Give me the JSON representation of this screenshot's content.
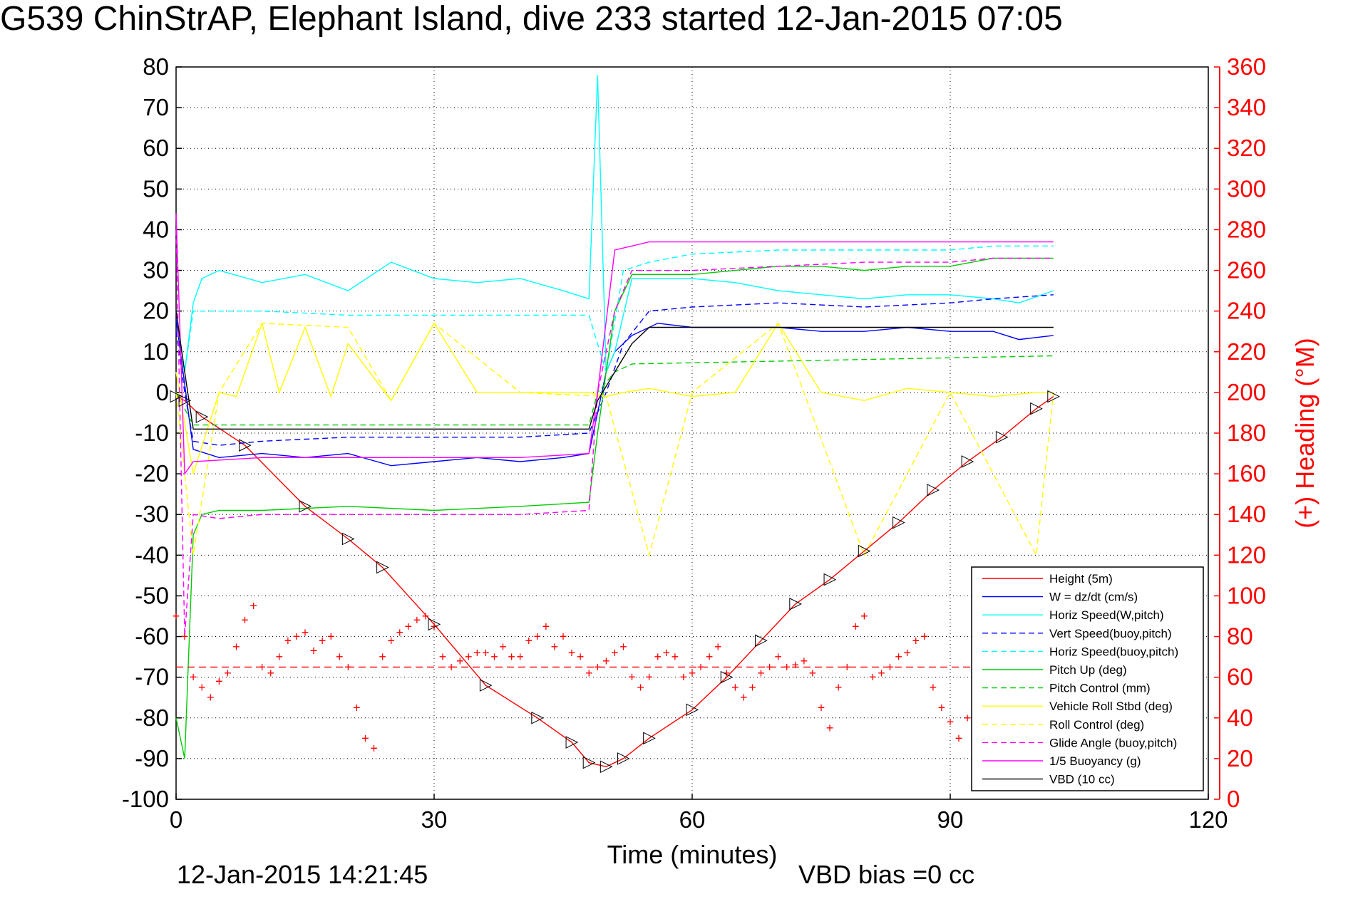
{
  "chart_data": {
    "type": "line",
    "title": "G539 ChinStrAP, Elephant Island, dive 233 started 12-Jan-2015 07:05",
    "xlabel": "Time (minutes)",
    "ylabel_right": "(+) Heading (°M)",
    "footer_left": "12-Jan-2015 14:21:45",
    "footer_right": "VBD bias =0 cc",
    "xlim": [
      0,
      120
    ],
    "ylim": [
      -100,
      80
    ],
    "ylim_right": [
      0,
      360
    ],
    "xticks": [
      0,
      30,
      60,
      90,
      120
    ],
    "yticks": [
      80,
      70,
      60,
      50,
      40,
      30,
      20,
      10,
      0,
      -10,
      -20,
      -30,
      -40,
      -50,
      -60,
      -70,
      -80,
      -90,
      -100
    ],
    "yticks_right": [
      360,
      340,
      320,
      300,
      280,
      260,
      240,
      220,
      200,
      180,
      160,
      140,
      120,
      100,
      80,
      60,
      40,
      20,
      0
    ],
    "grid": true,
    "legend_position": "lower-right",
    "legend_colors": {
      "red": "#ff0000",
      "blue": "#0000ff",
      "cyan": "#00ffff",
      "green": "#00cc00",
      "yellow": "#ffff00",
      "magenta": "#ff00ff",
      "black": "#000000"
    },
    "series": [
      {
        "name": "Height (5m)",
        "color": "#ff0000",
        "dash": false,
        "x": [
          0,
          1,
          3,
          8,
          15,
          20,
          24,
          30,
          36,
          42,
          46,
          48,
          50,
          52,
          55,
          60,
          64,
          68,
          72,
          76,
          80,
          84,
          88,
          92,
          96,
          100,
          102
        ],
        "y": [
          -1,
          -2,
          -6,
          -13,
          -28,
          -36,
          -43,
          -57,
          -72,
          -80,
          -86,
          -91,
          -92,
          -90,
          -85,
          -78,
          -70,
          -61,
          -52,
          -46,
          -39,
          -32,
          -24,
          -17,
          -11,
          -4,
          -1
        ]
      },
      {
        "name": "W = dz/dt (cm/s)",
        "color": "#0000ff",
        "dash": false,
        "x": [
          0,
          1,
          2,
          5,
          10,
          15,
          20,
          25,
          30,
          35,
          40,
          45,
          48,
          49,
          50,
          51,
          53,
          56,
          60,
          65,
          70,
          75,
          80,
          85,
          90,
          95,
          98,
          102
        ],
        "y": [
          18,
          2,
          -14,
          -16,
          -15,
          -16,
          -15,
          -18,
          -17,
          -16,
          -17,
          -16,
          -15,
          -5,
          5,
          10,
          14,
          17,
          16,
          16,
          16,
          15,
          15,
          16,
          15,
          15,
          13,
          14
        ]
      },
      {
        "name": "Horiz Speed(W,pitch)",
        "color": "#00ffff",
        "dash": false,
        "x": [
          0,
          1,
          2,
          3,
          5,
          10,
          15,
          20,
          25,
          30,
          35,
          40,
          45,
          48,
          49,
          50,
          51,
          53,
          56,
          60,
          65,
          70,
          75,
          80,
          85,
          90,
          95,
          98,
          102
        ],
        "y": [
          20,
          5,
          22,
          28,
          30,
          27,
          29,
          25,
          32,
          28,
          27,
          28,
          25,
          23,
          78,
          5,
          10,
          28,
          28,
          28,
          27,
          25,
          24,
          23,
          24,
          24,
          23,
          22,
          25
        ]
      },
      {
        "name": "Vert Speed(buoy,pitch)",
        "color": "#0000ff",
        "dash": true,
        "x": [
          0,
          1,
          2,
          5,
          10,
          20,
          30,
          40,
          48,
          50,
          52,
          55,
          60,
          70,
          80,
          90,
          95,
          102
        ],
        "y": [
          15,
          0,
          -12,
          -13,
          -12,
          -11,
          -11,
          -11,
          -10,
          0,
          12,
          20,
          21,
          22,
          21,
          22,
          23,
          24
        ]
      },
      {
        "name": "Horiz Speed(buoy,pitch)",
        "color": "#00ffff",
        "dash": true,
        "x": [
          0,
          1,
          2,
          5,
          10,
          20,
          30,
          40,
          48,
          50,
          52,
          55,
          60,
          70,
          80,
          90,
          95,
          102
        ],
        "y": [
          20,
          5,
          20,
          20,
          20,
          19,
          19,
          19,
          19,
          5,
          30,
          32,
          34,
          35,
          35,
          35,
          36,
          36
        ]
      },
      {
        "name": "Pitch Up (deg)",
        "color": "#00cc00",
        "dash": false,
        "x": [
          0,
          1,
          2,
          3,
          5,
          10,
          20,
          30,
          40,
          48,
          49,
          50,
          51,
          53,
          56,
          60,
          65,
          70,
          75,
          80,
          85,
          90,
          95,
          102
        ],
        "y": [
          -80,
          -90,
          -35,
          -30,
          -29,
          -29,
          -28,
          -29,
          -28,
          -27,
          -10,
          5,
          20,
          29,
          29,
          29,
          30,
          31,
          31,
          30,
          31,
          31,
          33,
          33
        ]
      },
      {
        "name": "Pitch Control (mm)",
        "color": "#00cc00",
        "dash": true,
        "x": [
          0,
          2,
          48,
          49,
          51,
          53,
          102
        ],
        "y": [
          0,
          -8,
          -8,
          0,
          5,
          7,
          9
        ]
      },
      {
        "name": "Vehicle Roll Stbd (deg)",
        "color": "#ffff00",
        "dash": false,
        "x": [
          0,
          2,
          5,
          7,
          10,
          12,
          15,
          18,
          20,
          25,
          30,
          35,
          40,
          45,
          48,
          50,
          52,
          55,
          60,
          65,
          70,
          75,
          80,
          85,
          90,
          95,
          100,
          102
        ],
        "y": [
          5,
          -20,
          0,
          -1,
          17,
          0,
          16,
          -1,
          12,
          -2,
          17,
          0,
          0,
          0,
          0,
          -1,
          0,
          1,
          -1,
          0,
          17,
          0,
          -2,
          1,
          0,
          -1,
          0,
          0
        ]
      },
      {
        "name": "Roll Control (deg)",
        "color": "#ffff00",
        "dash": true,
        "x": [
          0,
          2,
          5,
          10,
          20,
          25,
          30,
          40,
          50,
          55,
          60,
          70,
          80,
          90,
          100,
          102
        ],
        "y": [
          0,
          -40,
          0,
          17,
          16,
          -2,
          17,
          0,
          -1,
          -40,
          0,
          17,
          -40,
          0,
          -40,
          0
        ]
      },
      {
        "name": "Glide Angle (buoy,pitch)",
        "color": "#ff00ff",
        "dash": true,
        "x": [
          0,
          1,
          2,
          5,
          10,
          20,
          30,
          40,
          48,
          49,
          51,
          53,
          56,
          60,
          70,
          80,
          90,
          95,
          102
        ],
        "y": [
          40,
          -60,
          -30,
          -31,
          -30,
          -30,
          -30,
          -30,
          -29,
          0,
          20,
          30,
          30,
          30,
          31,
          32,
          32,
          33,
          33
        ]
      },
      {
        "name": "1/5 Buoyancy (g)",
        "color": "#ff00ff",
        "dash": false,
        "x": [
          0,
          1,
          2,
          10,
          20,
          30,
          40,
          48,
          49,
          51,
          53,
          55,
          60,
          70,
          80,
          90,
          102
        ],
        "y": [
          44,
          -20,
          -17,
          -16,
          -16,
          -16,
          -16,
          -15,
          0,
          35,
          36,
          37,
          37,
          37,
          37,
          37,
          37
        ]
      },
      {
        "name": "VBD (10 cc)",
        "color": "#000000",
        "dash": false,
        "x": [
          0,
          1,
          2,
          10,
          20,
          30,
          40,
          48,
          49,
          51,
          53,
          55,
          60,
          70,
          80,
          90,
          102
        ],
        "y": [
          20,
          5,
          -9,
          -9,
          -9,
          -9,
          -9,
          -9,
          -2,
          5,
          12,
          16,
          16,
          16,
          16,
          16,
          16
        ]
      }
    ],
    "heading_series": {
      "axis": "right",
      "color": "#ff0000",
      "marker": "+",
      "x": [
        0,
        1,
        2,
        3,
        4,
        5,
        6,
        7,
        8,
        9,
        10,
        11,
        12,
        13,
        14,
        15,
        16,
        17,
        18,
        19,
        20,
        21,
        22,
        23,
        24,
        25,
        26,
        27,
        28,
        29,
        30,
        31,
        32,
        33,
        34,
        35,
        36,
        37,
        38,
        39,
        40,
        41,
        42,
        43,
        44,
        45,
        46,
        47,
        48,
        49,
        50,
        51,
        52,
        53,
        54,
        55,
        56,
        57,
        58,
        59,
        60,
        61,
        62,
        63,
        64,
        65,
        66,
        67,
        68,
        69,
        70,
        71,
        72,
        73,
        74,
        75,
        76,
        77,
        78,
        79,
        80,
        81,
        82,
        83,
        84,
        85,
        86,
        87,
        88,
        89,
        90,
        91,
        92,
        93,
        94
      ],
      "y": [
        90,
        80,
        60,
        55,
        50,
        58,
        62,
        75,
        88,
        95,
        65,
        62,
        70,
        78,
        80,
        82,
        73,
        78,
        80,
        70,
        65,
        45,
        30,
        25,
        70,
        78,
        82,
        85,
        88,
        90,
        85,
        70,
        65,
        68,
        70,
        72,
        72,
        70,
        75,
        70,
        70,
        78,
        80,
        85,
        75,
        80,
        72,
        70,
        62,
        65,
        68,
        72,
        75,
        60,
        55,
        60,
        70,
        72,
        70,
        60,
        62,
        65,
        70,
        75,
        62,
        55,
        50,
        55,
        62,
        65,
        70,
        65,
        66,
        68,
        62,
        45,
        35,
        55,
        65,
        85,
        90,
        60,
        62,
        65,
        70,
        72,
        78,
        80,
        55,
        45,
        38,
        30,
        40,
        70,
        72
      ]
    },
    "heading_mean": 65
  }
}
